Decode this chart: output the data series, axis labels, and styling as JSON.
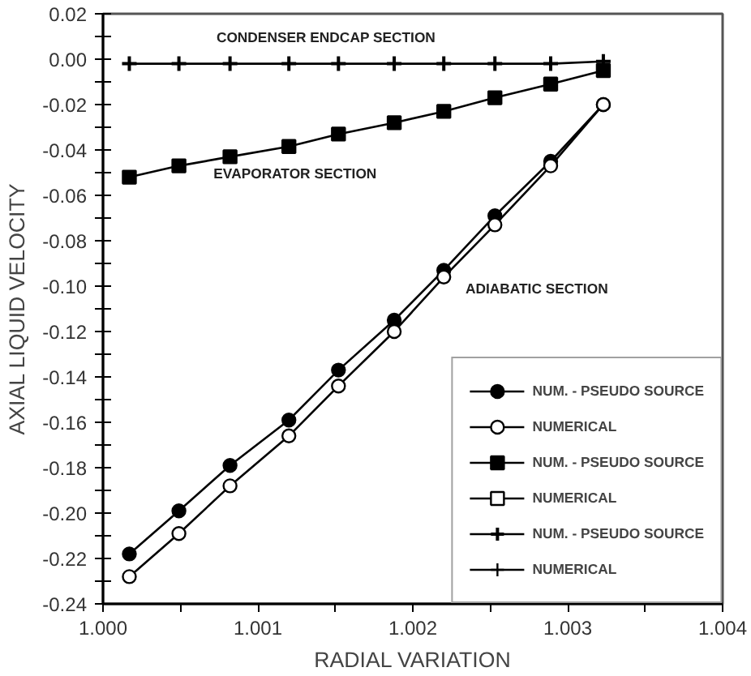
{
  "chart_data": {
    "type": "line",
    "xlabel": "RADIAL VARIATION",
    "ylabel": "AXIAL LIQUID VELOCITY",
    "x": [
      1.00017,
      1.00049,
      1.00082,
      1.0012,
      1.00152,
      1.00188,
      1.0022,
      1.00253,
      1.00289,
      1.00323
    ],
    "xlim": [
      1.0,
      1.004
    ],
    "xticks": [
      {
        "value": 1.0,
        "label": "1.000"
      },
      {
        "value": 1.0005,
        "label": null
      },
      {
        "value": 1.001,
        "label": "1.001"
      },
      {
        "value": 1.0015,
        "label": null
      },
      {
        "value": 1.002,
        "label": "1.002"
      },
      {
        "value": 1.0025,
        "label": null
      },
      {
        "value": 1.003,
        "label": "1.003"
      },
      {
        "value": 1.0035,
        "label": null
      },
      {
        "value": 1.004,
        "label": "1.004"
      }
    ],
    "ylim": [
      -0.24,
      0.02
    ],
    "yticks": [
      {
        "value": 0.02,
        "label": "0.02"
      },
      {
        "value": 0.01,
        "label": null
      },
      {
        "value": 0.0,
        "label": "0.00"
      },
      {
        "value": -0.01,
        "label": null
      },
      {
        "value": -0.02,
        "label": "-0.02"
      },
      {
        "value": -0.03,
        "label": null
      },
      {
        "value": -0.04,
        "label": "-0.04"
      },
      {
        "value": -0.05,
        "label": null
      },
      {
        "value": -0.06,
        "label": "-0.06"
      },
      {
        "value": -0.07,
        "label": null
      },
      {
        "value": -0.08,
        "label": "-0.08"
      },
      {
        "value": -0.09,
        "label": null
      },
      {
        "value": -0.1,
        "label": "-0.10"
      },
      {
        "value": -0.11,
        "label": null
      },
      {
        "value": -0.12,
        "label": "-0.12"
      },
      {
        "value": -0.13,
        "label": null
      },
      {
        "value": -0.14,
        "label": "-0.14"
      },
      {
        "value": -0.15,
        "label": null
      },
      {
        "value": -0.16,
        "label": "-0.16"
      },
      {
        "value": -0.17,
        "label": null
      },
      {
        "value": -0.18,
        "label": "-0.18"
      },
      {
        "value": -0.19,
        "label": null
      },
      {
        "value": -0.2,
        "label": "-0.20"
      },
      {
        "value": -0.21,
        "label": null
      },
      {
        "value": -0.22,
        "label": "-0.22"
      },
      {
        "value": -0.23,
        "label": null
      },
      {
        "value": -0.24,
        "label": "-0.24"
      }
    ],
    "series": [
      {
        "name": "NUM. - PSEUDO SOURCE",
        "color": "#000000",
        "marker": "circle",
        "values": [
          -0.218,
          -0.199,
          -0.179,
          -0.159,
          -0.137,
          -0.115,
          -0.093,
          -0.069,
          -0.045,
          -0.02
        ]
      },
      {
        "name": "NUMERICAL",
        "color": "#000000",
        "marker": "circle",
        "values": [
          -0.228,
          -0.209,
          -0.188,
          -0.166,
          -0.144,
          -0.12,
          -0.096,
          -0.073,
          -0.047,
          -0.02
        ]
      },
      {
        "name": "NUM. - PSEUDO SOURCE",
        "color": "#000000",
        "marker": "square",
        "values": [
          -0.052,
          -0.047,
          -0.043,
          -0.0385,
          -0.033,
          -0.028,
          -0.023,
          -0.017,
          -0.011,
          -0.005
        ]
      },
      {
        "name": "NUMERICAL",
        "color": "#000000",
        "marker": "square",
        "values": [
          null,
          null,
          null,
          null,
          null,
          null,
          null,
          null,
          null,
          null
        ]
      },
      {
        "name": "NUM. - PSEUDO SOURCE",
        "color": "#000000",
        "marker": "cross",
        "values": [
          -0.002,
          -0.002,
          -0.002,
          -0.002,
          -0.002,
          -0.002,
          -0.002,
          -0.002,
          -0.002,
          -0.001
        ]
      },
      {
        "name": "NUMERICAL",
        "color": "#000000",
        "marker": "cross",
        "values": [
          null,
          null,
          null,
          null,
          null,
          null,
          null,
          null,
          null,
          null
        ]
      }
    ],
    "annotations": [
      "CONDENSER ENDCAP SECTION",
      "EVAPORATOR SECTION",
      "ADIABATIC SECTION"
    ],
    "legend": "bottom right",
    "grid": false,
    "line_style": "solid"
  }
}
